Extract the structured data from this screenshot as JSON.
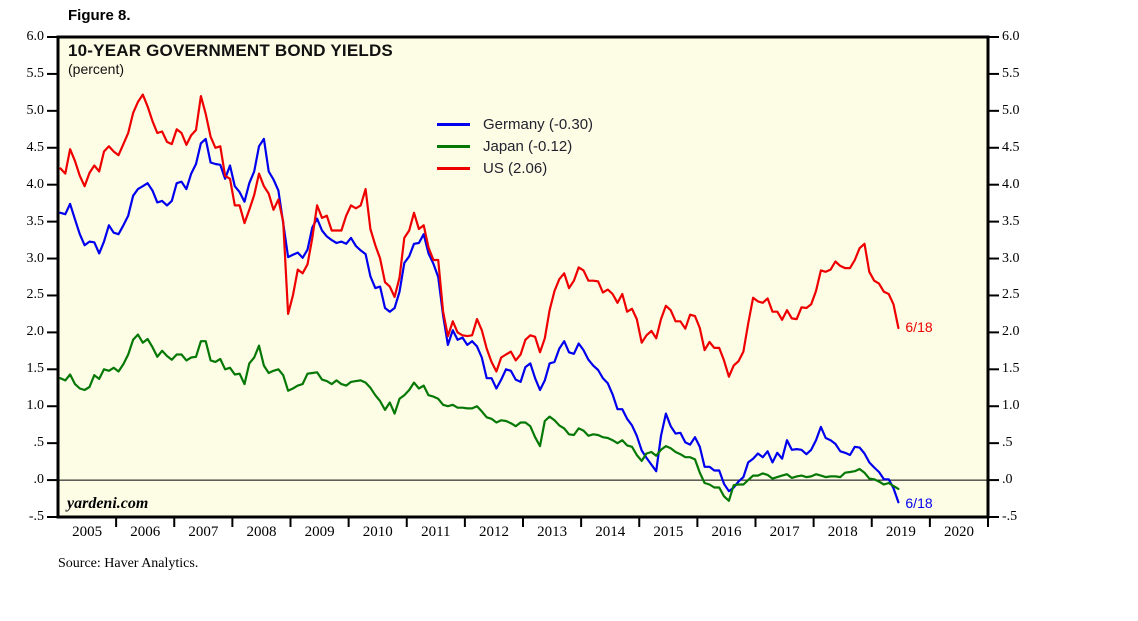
{
  "figure_label": "Figure 8.",
  "watermark": "yardeni.com",
  "source": "Source: Haver Analytics.",
  "colors": {
    "plot_background": "#FDFDE6",
    "plot_border": "#000000",
    "zero_line": "#000000",
    "germany": "#0000EE",
    "japan": "#067806",
    "us": "#EE0000",
    "legend_text": "#22222e"
  },
  "chart_data": {
    "type": "line",
    "title": "10-YEAR GOVERNMENT BOND YIELDS",
    "subtitle": "(percent)",
    "grid": "off",
    "legend_position": "upper-center-inside",
    "zero_line": true,
    "x_start_year": 2005,
    "points_per_year": 12,
    "last_point_date": "6/18",
    "x_axis": {
      "range": [
        2005,
        2021
      ],
      "year_labels": [
        "2005",
        "2006",
        "2007",
        "2008",
        "2009",
        "2010",
        "2011",
        "2012",
        "2013",
        "2014",
        "2015",
        "2016",
        "2017",
        "2018",
        "2019",
        "2020"
      ]
    },
    "y_axis": {
      "range": [
        -0.5,
        6.0
      ],
      "tick_labels": [
        "6.0",
        "5.5",
        "5.0",
        "4.5",
        "4.0",
        "3.5",
        "3.0",
        "2.5",
        "2.0",
        "1.5",
        "1.0",
        ".5",
        ".0",
        "-.5"
      ],
      "tick_values": [
        6.0,
        5.5,
        5.0,
        4.5,
        4.0,
        3.5,
        3.0,
        2.5,
        2.0,
        1.5,
        1.0,
        0.5,
        0.0,
        -0.5
      ]
    },
    "series": [
      {
        "name": "Germany",
        "legend_label": "Germany (-0.30)",
        "color": "#0000EE",
        "last_value": -0.3,
        "end_label": "6/18",
        "values": [
          3.62,
          3.6,
          3.74,
          3.53,
          3.33,
          3.18,
          3.23,
          3.22,
          3.07,
          3.23,
          3.45,
          3.35,
          3.33,
          3.45,
          3.58,
          3.85,
          3.94,
          3.98,
          4.02,
          3.92,
          3.76,
          3.78,
          3.72,
          3.78,
          4.02,
          4.04,
          3.94,
          4.15,
          4.28,
          4.56,
          4.62,
          4.3,
          4.28,
          4.27,
          4.08,
          4.26,
          3.98,
          3.9,
          3.77,
          4.02,
          4.18,
          4.52,
          4.62,
          4.18,
          4.07,
          3.92,
          3.48,
          3.02,
          3.05,
          3.08,
          3.01,
          3.12,
          3.42,
          3.54,
          3.38,
          3.3,
          3.25,
          3.21,
          3.23,
          3.2,
          3.28,
          3.17,
          3.11,
          3.06,
          2.76,
          2.6,
          2.62,
          2.33,
          2.28,
          2.33,
          2.55,
          2.94,
          3.03,
          3.2,
          3.21,
          3.33,
          3.07,
          2.93,
          2.75,
          2.23,
          1.83,
          2.03,
          1.9,
          1.93,
          1.83,
          1.88,
          1.81,
          1.66,
          1.38,
          1.38,
          1.24,
          1.36,
          1.5,
          1.48,
          1.36,
          1.33,
          1.53,
          1.58,
          1.38,
          1.22,
          1.35,
          1.58,
          1.6,
          1.78,
          1.88,
          1.73,
          1.71,
          1.85,
          1.76,
          1.63,
          1.55,
          1.49,
          1.38,
          1.31,
          1.16,
          0.96,
          0.96,
          0.83,
          0.74,
          0.6,
          0.4,
          0.3,
          0.21,
          0.12,
          0.6,
          0.9,
          0.73,
          0.63,
          0.64,
          0.51,
          0.48,
          0.58,
          0.45,
          0.18,
          0.18,
          0.13,
          0.13,
          -0.05,
          -0.15,
          -0.1,
          -0.02,
          0.04,
          0.24,
          0.29,
          0.36,
          0.31,
          0.39,
          0.24,
          0.37,
          0.29,
          0.54,
          0.41,
          0.42,
          0.41,
          0.35,
          0.41,
          0.54,
          0.72,
          0.57,
          0.54,
          0.49,
          0.39,
          0.37,
          0.34,
          0.45,
          0.44,
          0.36,
          0.24,
          0.17,
          0.11,
          0.01,
          0.01,
          -0.11,
          -0.3
        ]
      },
      {
        "name": "Japan",
        "legend_label": "Japan (-0.12)",
        "color": "#067806",
        "last_value": -0.12,
        "end_label": "",
        "values": [
          1.38,
          1.35,
          1.43,
          1.3,
          1.24,
          1.22,
          1.26,
          1.42,
          1.37,
          1.5,
          1.48,
          1.52,
          1.47,
          1.57,
          1.7,
          1.9,
          1.97,
          1.86,
          1.91,
          1.8,
          1.67,
          1.75,
          1.68,
          1.63,
          1.7,
          1.7,
          1.62,
          1.66,
          1.67,
          1.88,
          1.88,
          1.62,
          1.6,
          1.64,
          1.5,
          1.52,
          1.43,
          1.44,
          1.3,
          1.58,
          1.66,
          1.82,
          1.55,
          1.45,
          1.48,
          1.5,
          1.42,
          1.21,
          1.24,
          1.28,
          1.3,
          1.44,
          1.45,
          1.46,
          1.36,
          1.34,
          1.3,
          1.35,
          1.3,
          1.28,
          1.33,
          1.34,
          1.35,
          1.32,
          1.25,
          1.15,
          1.07,
          0.95,
          1.05,
          0.9,
          1.1,
          1.15,
          1.22,
          1.32,
          1.24,
          1.28,
          1.15,
          1.13,
          1.1,
          1.02,
          1.0,
          1.02,
          0.98,
          0.98,
          0.97,
          0.97,
          1.0,
          0.93,
          0.85,
          0.83,
          0.78,
          0.81,
          0.8,
          0.77,
          0.73,
          0.78,
          0.78,
          0.73,
          0.58,
          0.46,
          0.8,
          0.86,
          0.81,
          0.74,
          0.7,
          0.62,
          0.61,
          0.7,
          0.67,
          0.6,
          0.62,
          0.61,
          0.58,
          0.57,
          0.54,
          0.5,
          0.54,
          0.47,
          0.45,
          0.34,
          0.26,
          0.36,
          0.38,
          0.33,
          0.41,
          0.46,
          0.43,
          0.38,
          0.35,
          0.31,
          0.31,
          0.28,
          0.1,
          -0.04,
          -0.06,
          -0.1,
          -0.1,
          -0.22,
          -0.28,
          -0.07,
          -0.06,
          -0.06,
          0.0,
          0.06,
          0.06,
          0.09,
          0.07,
          0.02,
          0.04,
          0.06,
          0.08,
          0.03,
          0.05,
          0.06,
          0.04,
          0.05,
          0.08,
          0.06,
          0.04,
          0.05,
          0.05,
          0.04,
          0.1,
          0.11,
          0.12,
          0.15,
          0.1,
          0.02,
          0.01,
          -0.02,
          -0.06,
          -0.04,
          -0.08,
          -0.12
        ]
      },
      {
        "name": "US",
        "legend_label": "US (2.06)",
        "color": "#EE0000",
        "last_value": 2.06,
        "end_label": "6/18",
        "values": [
          4.22,
          4.15,
          4.48,
          4.32,
          4.12,
          3.98,
          4.16,
          4.26,
          4.18,
          4.45,
          4.52,
          4.45,
          4.4,
          4.55,
          4.7,
          4.97,
          5.12,
          5.22,
          5.06,
          4.86,
          4.7,
          4.72,
          4.58,
          4.55,
          4.75,
          4.7,
          4.54,
          4.67,
          4.74,
          5.2,
          4.96,
          4.65,
          4.5,
          4.52,
          4.12,
          4.08,
          3.72,
          3.72,
          3.48,
          3.66,
          3.86,
          4.15,
          3.98,
          3.88,
          3.66,
          3.8,
          3.5,
          2.25,
          2.5,
          2.85,
          2.8,
          2.92,
          3.28,
          3.72,
          3.55,
          3.58,
          3.38,
          3.38,
          3.38,
          3.58,
          3.72,
          3.68,
          3.72,
          3.94,
          3.4,
          3.18,
          3.0,
          2.68,
          2.62,
          2.48,
          2.74,
          3.28,
          3.38,
          3.62,
          3.4,
          3.45,
          3.15,
          2.98,
          2.98,
          2.28,
          1.95,
          2.15,
          2.0,
          1.96,
          1.95,
          1.96,
          2.18,
          2.03,
          1.78,
          1.6,
          1.47,
          1.66,
          1.7,
          1.74,
          1.62,
          1.7,
          1.9,
          1.96,
          1.94,
          1.73,
          1.92,
          2.3,
          2.56,
          2.72,
          2.8,
          2.6,
          2.7,
          2.88,
          2.84,
          2.7,
          2.7,
          2.69,
          2.54,
          2.58,
          2.52,
          2.4,
          2.52,
          2.28,
          2.32,
          2.18,
          1.86,
          1.96,
          2.02,
          1.92,
          2.18,
          2.36,
          2.3,
          2.15,
          2.15,
          2.05,
          2.24,
          2.22,
          2.06,
          1.76,
          1.87,
          1.79,
          1.79,
          1.62,
          1.4,
          1.55,
          1.61,
          1.74,
          2.12,
          2.47,
          2.42,
          2.4,
          2.46,
          2.28,
          2.28,
          2.17,
          2.3,
          2.19,
          2.18,
          2.34,
          2.33,
          2.38,
          2.56,
          2.84,
          2.82,
          2.85,
          2.96,
          2.9,
          2.87,
          2.87,
          2.98,
          3.14,
          3.2,
          2.82,
          2.7,
          2.66,
          2.55,
          2.52,
          2.38,
          2.06
        ]
      }
    ]
  }
}
